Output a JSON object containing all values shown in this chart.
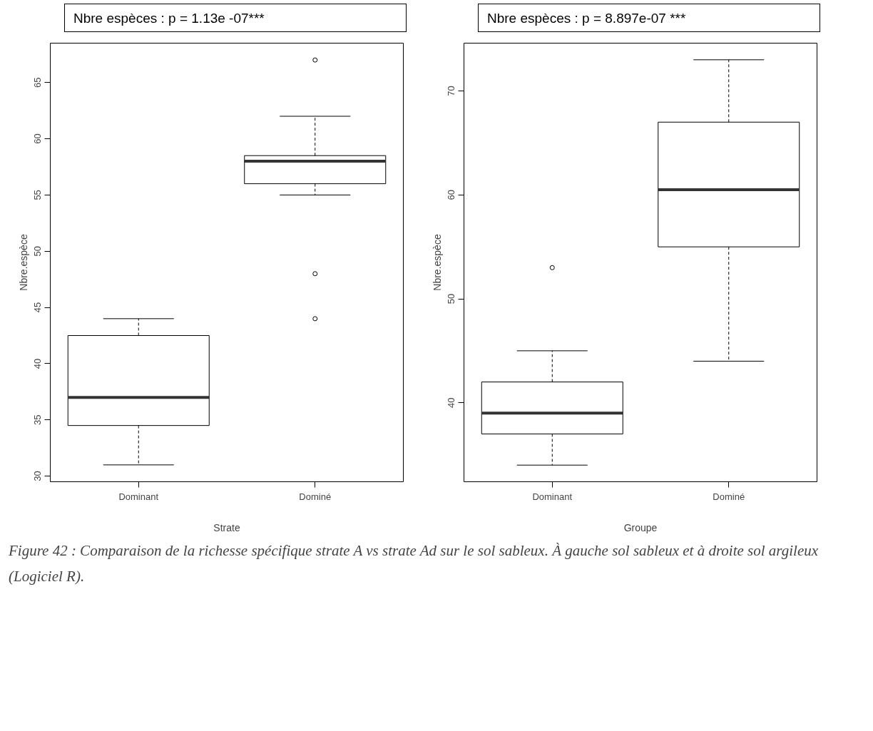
{
  "chart_data": [
    {
      "type": "box",
      "title": "Nbre espèces : p = 1.13e -07***",
      "xlabel": "Strate",
      "ylabel": "Nbre.espèce",
      "categories": [
        "Dominant",
        "Dominé"
      ],
      "boxes": [
        {
          "low": 31,
          "q1": 34.5,
          "median": 37,
          "q3": 42.5,
          "high": 44
        },
        {
          "low": 55,
          "q1": 56,
          "median": 58,
          "q3": 58.5,
          "high": 62,
          "outliers": [
            67,
            48,
            44
          ]
        }
      ],
      "ylim": [
        29.5,
        68.5
      ],
      "yticks": [
        30,
        35,
        40,
        45,
        50,
        55,
        60,
        65
      ],
      "grid": false,
      "annotations": [
        "Figure 42 : Comparaison de la richesse spécifique strate A vs strate Ad sur le sol sableux. À gauche sol sableux et à droite sol argileux (Logiciel R)."
      ]
    },
    {
      "type": "box",
      "title": "Nbre espèces : p = 8.897e-07 ***",
      "xlabel": "Groupe",
      "ylabel": "Nbre.espèce",
      "categories": [
        "Dominant",
        "Dominé"
      ],
      "boxes": [
        {
          "low": 34,
          "q1": 37,
          "median": 39,
          "q3": 42,
          "high": 45,
          "outliers": [
            53
          ]
        },
        {
          "low": 44,
          "q1": 55,
          "median": 60.5,
          "q3": 67,
          "high": 73
        }
      ],
      "ylim": [
        32.4,
        74.6
      ],
      "yticks": [
        40,
        50,
        60,
        70
      ],
      "grid": false
    }
  ]
}
